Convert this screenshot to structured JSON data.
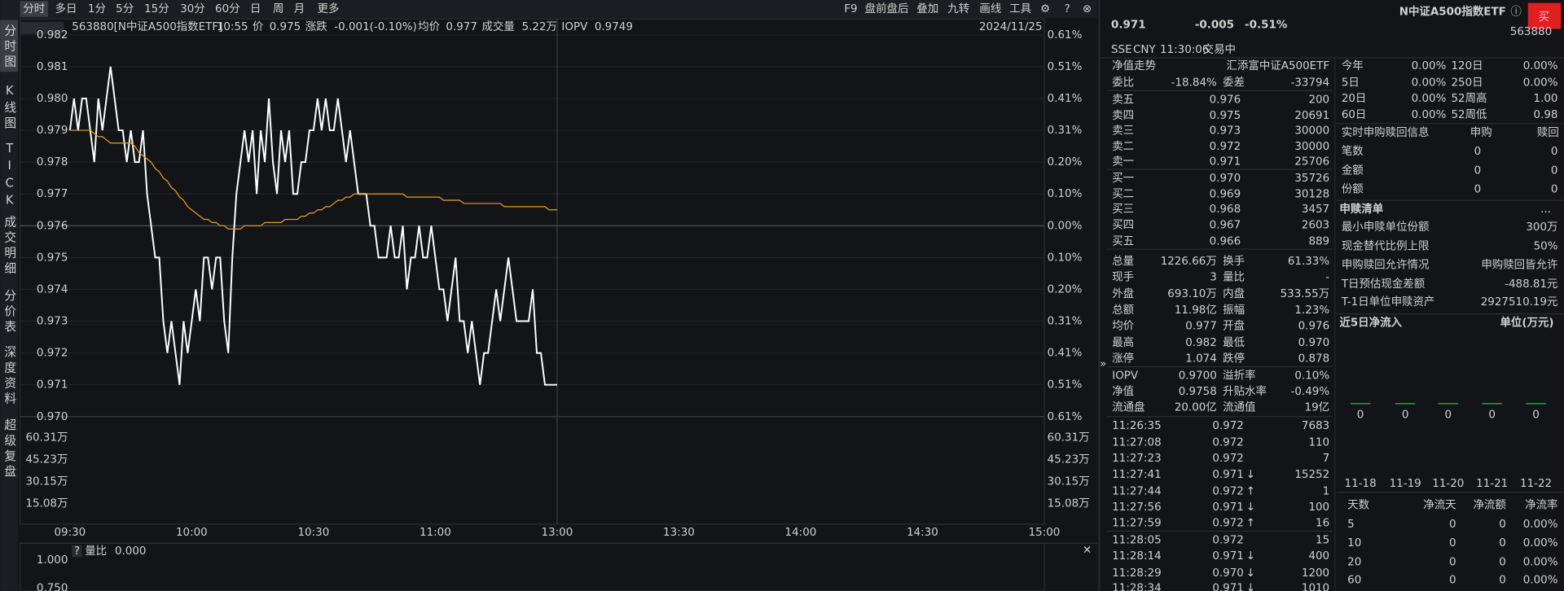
{
  "toolbar": {
    "tabs": [
      "分时",
      "多日",
      "1分",
      "5分",
      "15分",
      "30分",
      "60分",
      "日",
      "周",
      "月",
      "更多"
    ],
    "tools": [
      "F9",
      "盘前盘后",
      "叠加",
      "九转",
      "画线",
      "工具"
    ]
  },
  "sidebar": [
    "分时图",
    "K线图",
    "TICK",
    "成交明细",
    "分价表",
    "深度资料",
    "超级复盘"
  ],
  "info_bar": {
    "code": "563880[N中证A500指数ETF]",
    "time": "10:55",
    "price_label": "价",
    "price": "0.975",
    "change_label": "涨跌",
    "change": "-0.001(-0.10%)",
    "avg_label": "均价",
    "avg": "0.977",
    "volume_label": "成交量",
    "volume": "5.22万",
    "iopv_label": "IOPV",
    "iopv": "0.9749",
    "date": "2024/11/25"
  },
  "chart_data": {
    "type": "line",
    "series": [
      {
        "color": "#ffffff",
        "values": [
          0.979,
          0.98,
          0.979,
          0.98,
          0.98,
          0.979,
          0.978,
          0.98,
          0.979,
          0.98,
          0.981,
          0.98,
          0.979,
          0.979,
          0.978,
          0.979,
          0.978,
          0.978,
          0.979,
          0.977,
          0.976,
          0.975,
          0.975,
          0.973,
          0.972,
          0.973,
          0.972,
          0.971,
          0.973,
          0.972,
          0.973,
          0.974,
          0.973,
          0.975,
          0.975,
          0.974,
          0.975,
          0.975,
          0.973,
          0.972,
          0.975,
          0.977,
          0.978,
          0.979,
          0.978,
          0.979,
          0.977,
          0.979,
          0.978,
          0.98,
          0.978,
          0.977,
          0.979,
          0.978,
          0.979,
          0.977,
          0.977,
          0.978,
          0.978,
          0.979,
          0.979,
          0.98,
          0.979,
          0.98,
          0.979,
          0.979,
          0.98,
          0.979,
          0.978,
          0.979,
          0.978,
          0.977,
          0.977,
          0.977,
          0.976,
          0.976,
          0.975,
          0.975,
          0.975,
          0.976,
          0.975,
          0.975,
          0.976,
          0.974,
          0.975,
          0.975,
          0.976,
          0.975,
          0.975,
          0.976,
          0.975,
          0.974,
          0.974,
          0.973,
          0.974,
          0.975,
          0.973,
          0.973,
          0.972,
          0.973,
          0.972,
          0.971,
          0.972,
          0.972,
          0.973,
          0.974,
          0.973,
          0.974,
          0.975,
          0.974,
          0.973,
          0.973,
          0.973,
          0.973,
          0.974,
          0.972,
          0.972,
          0.971,
          0.971,
          0.971,
          0.971
        ]
      },
      {
        "color": "#e8a020",
        "values": [
          0.979,
          0.979,
          0.979,
          0.979,
          0.979,
          0.979,
          0.9789,
          0.9788,
          0.9788,
          0.9787,
          0.9786,
          0.9786,
          0.9786,
          0.9786,
          0.9786,
          0.9786,
          0.9785,
          0.9783,
          0.9782,
          0.9781,
          0.978,
          0.9778,
          0.9777,
          0.9775,
          0.9774,
          0.9772,
          0.9771,
          0.9769,
          0.9768,
          0.9766,
          0.9765,
          0.9764,
          0.9763,
          0.9762,
          0.9762,
          0.9761,
          0.9761,
          0.976,
          0.976,
          0.9759,
          0.9759,
          0.9759,
          0.9759,
          0.976,
          0.976,
          0.976,
          0.976,
          0.976,
          0.9761,
          0.9761,
          0.9761,
          0.9761,
          0.9761,
          0.9762,
          0.9762,
          0.9762,
          0.9762,
          0.9763,
          0.9763,
          0.9764,
          0.9764,
          0.9765,
          0.9765,
          0.9766,
          0.9766,
          0.9767,
          0.9768,
          0.9768,
          0.9769,
          0.9769,
          0.977,
          0.977,
          0.977,
          0.977,
          0.977,
          0.977,
          0.977,
          0.977,
          0.977,
          0.977,
          0.977,
          0.977,
          0.977,
          0.9769,
          0.9769,
          0.9769,
          0.9769,
          0.9769,
          0.9769,
          0.9769,
          0.9769,
          0.9769,
          0.9768,
          0.9768,
          0.9768,
          0.9768,
          0.9768,
          0.9767,
          0.9767,
          0.9767,
          0.9767,
          0.9767,
          0.9767,
          0.9767,
          0.9767,
          0.9767,
          0.9767,
          0.9766,
          0.9766,
          0.9766,
          0.9766,
          0.9766,
          0.9766,
          0.9766,
          0.9766,
          0.9766,
          0.9766,
          0.9766,
          0.9765,
          0.9765,
          0.9765
        ]
      }
    ],
    "ylim": [
      0.97,
      0.982
    ],
    "yticks": [
      0.982,
      0.981,
      {
        "value": 0.98,
        "label": "0.980"
      },
      0.979,
      0.978,
      0.977,
      0.976,
      0.975,
      0.974,
      0.973,
      0.972,
      0.971,
      {
        "value": 0.97,
        "label": "0.970"
      }
    ],
    "pct_labels": [
      "0.61%",
      "0.51%",
      "0.41%",
      "0.31%",
      "0.20%",
      "0.10%",
      "0.00%",
      "0.10%",
      "0.20%",
      "0.31%",
      "0.41%",
      "0.51%",
      "0.61%"
    ],
    "volume_labels": [
      "60.31万",
      "45.23万",
      "30.15万",
      "15.08万"
    ],
    "xticks": [
      "09:30",
      "10:00",
      "10:30",
      "11:00",
      "13:00",
      "13:30",
      "14:00",
      "14:30",
      "15:00"
    ],
    "grid": true
  },
  "sub_chart": {
    "label": "量比",
    "value": "0.000",
    "yticks": [
      "1.000",
      "0.750"
    ]
  },
  "quote": {
    "price": "0.971",
    "change": "-0.005",
    "change_pct": "-0.51%",
    "name": "N中证A500指数ETF",
    "code": "563880",
    "buy": "买",
    "market": "SSE",
    "currency": "CNY",
    "time": "11:30:06",
    "status": "交易中"
  },
  "order_book": {
    "nav": "净值走势",
    "fund": "汇添富中证A500ETF",
    "ratio": [
      "委比",
      "-18.84%",
      "委差",
      "-33794"
    ],
    "asks": [
      [
        "卖五",
        "0.976",
        "200"
      ],
      [
        "卖四",
        "0.975",
        "20691"
      ],
      [
        "卖三",
        "0.973",
        "30000"
      ],
      [
        "卖二",
        "0.972",
        "30000"
      ],
      [
        "卖一",
        "0.971",
        "25706"
      ]
    ],
    "bids": [
      [
        "买一",
        "0.970",
        "35726"
      ],
      [
        "买二",
        "0.969",
        "30128"
      ],
      [
        "买三",
        "0.968",
        "3457"
      ],
      [
        "买四",
        "0.967",
        "2603"
      ],
      [
        "买五",
        "0.966",
        "889"
      ]
    ]
  },
  "stats": [
    [
      "总量",
      "1226.66万",
      "换手",
      "61.33%"
    ],
    [
      "现手",
      "3",
      "量比",
      "-"
    ],
    [
      "外盘",
      "693.10万",
      "内盘",
      "533.55万"
    ],
    [
      "总额",
      "11.98亿",
      "振幅",
      "1.23%"
    ],
    [
      "均价",
      "0.977",
      "开盘",
      "0.976"
    ],
    [
      "最高",
      "0.982",
      "最低",
      "0.970"
    ],
    [
      "涨停",
      "1.074",
      "跌停",
      "0.878"
    ]
  ],
  "iopv": [
    [
      "IOPV",
      "0.9700",
      "溢折率",
      "0.10%"
    ],
    [
      "净值",
      "0.9758",
      "升贴水率",
      "-0.49%"
    ],
    [
      "流通盘",
      "20.00亿",
      "流通值",
      "19亿"
    ]
  ],
  "trades": [
    {
      "time": "11:26:35",
      "price": "0.972",
      "volume": "7683"
    },
    {
      "time": "11:27:08",
      "price": "0.972",
      "volume": "110"
    },
    {
      "time": "11:27:23",
      "price": "0.972",
      "volume": "7"
    },
    {
      "time": "11:27:41",
      "price": "0.971",
      "arrow": "↓",
      "volume": "15252"
    },
    {
      "time": "11:27:44",
      "price": "0.972",
      "arrow": "↑",
      "volume": "1"
    },
    {
      "time": "11:27:56",
      "price": "0.971",
      "arrow": "↓",
      "volume": "100"
    },
    {
      "time": "11:27:59",
      "price": "0.972",
      "arrow": "↑",
      "volume": "16"
    },
    {
      "time": "11:28:05",
      "price": "0.972",
      "volume": "15"
    },
    {
      "time": "11:28:14",
      "price": "0.971",
      "arrow": "↓",
      "volume": "400"
    },
    {
      "time": "11:28:29",
      "price": "0.970",
      "arrow": "↓",
      "volume": "1200"
    },
    {
      "time": "11:28:34",
      "price": "0.971",
      "arrow": "↓",
      "volume": "1010"
    }
  ],
  "returns": [
    [
      "今年",
      "0.00%",
      "120日",
      "0.00%"
    ],
    [
      "5日",
      "0.00%",
      "250日",
      "0.00%"
    ],
    [
      "20日",
      "0.00%",
      "52周高",
      "1.00"
    ],
    [
      "60日",
      "0.00%",
      "52周低",
      "0.98"
    ]
  ],
  "subscription": {
    "header": [
      "实时申购赎回信息",
      "申购",
      "赎回"
    ],
    "rows": [
      [
        "笔数",
        "0",
        "0"
      ],
      [
        "金额",
        "0",
        "0"
      ],
      [
        "份额",
        "0",
        "0"
      ]
    ]
  },
  "creation_list": {
    "title": "申赎清单",
    "more": "...",
    "rows": [
      [
        "最小申赎单位份额",
        "300万"
      ],
      [
        "现金替代比例上限",
        "50%"
      ],
      [
        "申购赎回允许情况",
        "申购赎回皆允许"
      ],
      [
        "T日预估现金差额",
        "-488.81元"
      ],
      [
        "T-1日单位申赎资产",
        "2927510.19元"
      ]
    ]
  },
  "net_inflow": {
    "title": "近5日净流入",
    "unit": "单位(万元)",
    "categories": [
      "11-18",
      "11-19",
      "11-20",
      "11-21",
      "11-22"
    ],
    "values": [
      0,
      0,
      0,
      0,
      0
    ],
    "table_header": [
      "天数",
      "净流天",
      "净流额",
      "净流率"
    ],
    "rows": [
      [
        "5",
        "0",
        "0",
        "0.00%"
      ],
      [
        "10",
        "0",
        "0",
        "0.00%"
      ],
      [
        "20",
        "0",
        "0",
        "0.00%"
      ],
      [
        "60",
        "0",
        "0",
        "0.00%"
      ]
    ]
  }
}
